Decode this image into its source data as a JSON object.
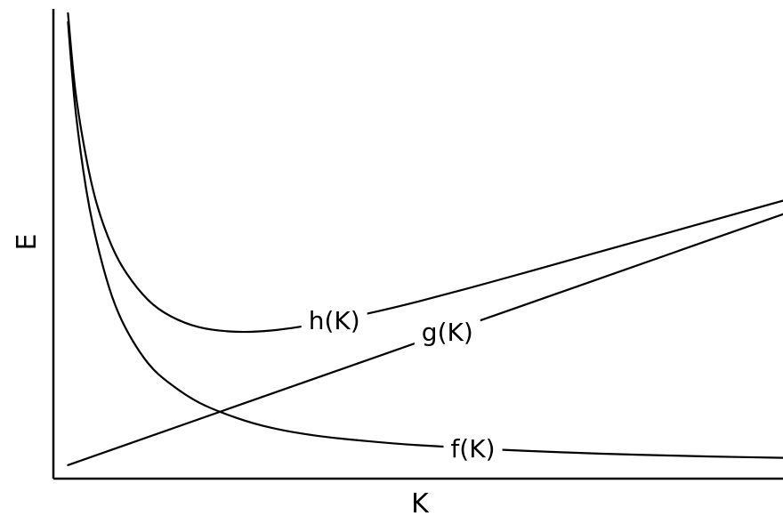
{
  "chart_data": {
    "type": "line",
    "title": "",
    "xlabel": "K",
    "ylabel": "E",
    "grid": false,
    "legend": "none",
    "ticks": "none",
    "xlim": [
      0,
      10
    ],
    "ylim": [
      0,
      10
    ],
    "series": [
      {
        "name": "h(K)",
        "x": [
          0.2,
          0.3,
          0.45,
          0.6,
          0.8,
          1.0,
          1.3,
          1.6,
          2.0,
          2.5,
          3.0,
          3.6,
          4.3,
          5.0,
          6.0,
          7.0,
          8.0,
          9.0,
          10.0
        ],
        "y": [
          10.3,
          8.6,
          7.1,
          6.05,
          5.15,
          4.55,
          3.95,
          3.6,
          3.35,
          3.25,
          3.28,
          3.42,
          3.65,
          3.92,
          4.35,
          4.8,
          5.25,
          5.7,
          6.15
        ]
      },
      {
        "name": "g(K)",
        "x": [
          0.2,
          10.0
        ],
        "y": [
          0.3,
          5.85
        ]
      },
      {
        "name": "f(K)",
        "x": [
          0.2,
          0.3,
          0.45,
          0.6,
          0.8,
          1.0,
          1.3,
          1.6,
          2.0,
          2.5,
          3.0,
          3.6,
          4.3,
          5.0,
          6.0,
          7.0,
          8.0,
          9.0,
          10.0
        ],
        "y": [
          10.1,
          8.2,
          6.4,
          5.2,
          4.05,
          3.3,
          2.55,
          2.1,
          1.68,
          1.35,
          1.12,
          0.95,
          0.83,
          0.74,
          0.65,
          0.58,
          0.53,
          0.49,
          0.46
        ]
      }
    ],
    "annotations": [
      {
        "text": "h(K)",
        "series": "h(K)",
        "x": 3.85
      },
      {
        "text": "g(K)",
        "series": "g(K)",
        "x": 5.4
      },
      {
        "text": "f(K)",
        "series": "f(K)",
        "x": 5.75
      }
    ]
  }
}
